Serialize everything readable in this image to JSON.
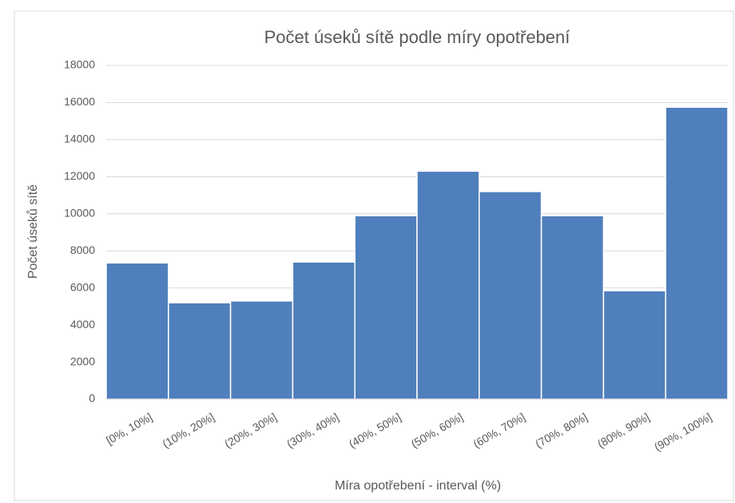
{
  "chart_data": {
    "type": "bar",
    "title": "Počet úseků sítě podle míry opotřebení",
    "x_label": "Míra opotřebení - interval (%)",
    "y_label": "Počet úseků sítě",
    "categories": [
      "[0%, 10%]",
      "(10%, 20%]",
      "(20%, 30%]",
      "(30%, 40%]",
      "(40%, 50%]",
      "(50%, 60%]",
      "(60%, 70%]",
      "(70%, 80%]",
      "(80%, 90%]",
      "(90%, 100%]"
    ],
    "values": [
      7350,
      5200,
      5300,
      7400,
      9900,
      12300,
      11200,
      9900,
      5850,
      15750
    ],
    "color": "#4f7fbc",
    "ylim": [
      0,
      18000
    ],
    "yticks": [
      0,
      2000,
      4000,
      6000,
      8000,
      10000,
      12000,
      14000,
      16000,
      18000
    ],
    "grid": true
  }
}
